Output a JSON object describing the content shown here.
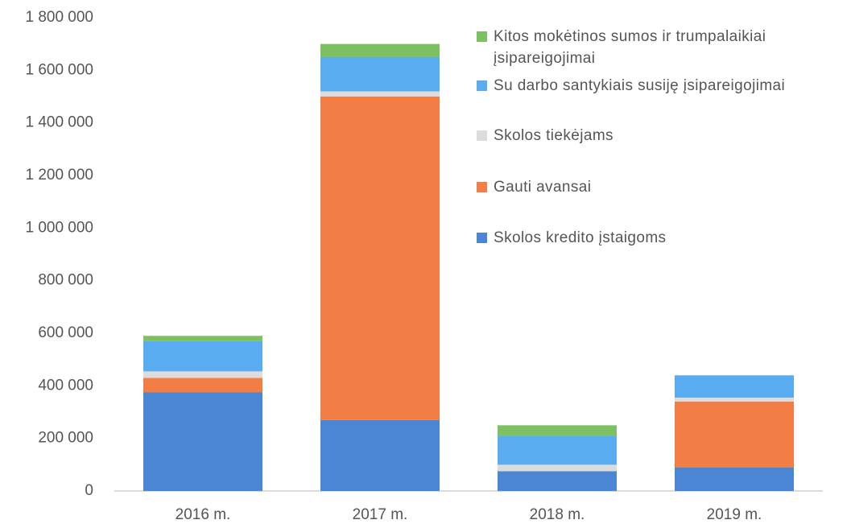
{
  "chart_data": {
    "type": "stacked_bar",
    "categories": [
      "2016 m.",
      "2017 m.",
      "2018 m.",
      "2019 m."
    ],
    "series": [
      {
        "name": "Skolos kredito įstaigoms",
        "color": "#4a86d4",
        "values": [
          375000,
          270000,
          75000,
          90000
        ]
      },
      {
        "name": "Gauti avansai",
        "color": "#f27d45",
        "values": [
          55000,
          1230000,
          0,
          250000
        ]
      },
      {
        "name": "Skolos tiekėjams",
        "color": "#dcdcdc",
        "values": [
          25000,
          20000,
          25000,
          15000
        ]
      },
      {
        "name": "Su darbo santykiais susiję įsipareigojimai",
        "color": "#5aacf0",
        "values": [
          115000,
          130000,
          110000,
          85000
        ]
      },
      {
        "name": "Kitos mokėtinos sumos ir trumpalaikiai įsipareigojimai",
        "color": "#7cc062",
        "values": [
          20000,
          50000,
          40000,
          0
        ]
      }
    ],
    "ylim": [
      0,
      1800000
    ],
    "yticks": [
      0,
      {
        "value": 200000,
        "label": "200 000"
      },
      {
        "value": 400000,
        "label": "400 000"
      },
      {
        "value": 600000,
        "label": "600 000"
      },
      {
        "value": 800000,
        "label": "800 000"
      },
      {
        "value": 1000000,
        "label": "1 000 000"
      },
      {
        "value": 1200000,
        "label": "1 200 000"
      },
      {
        "value": 1400000,
        "label": "1 400 000"
      },
      {
        "value": 1600000,
        "label": "1 600 000"
      },
      {
        "value": 1800000,
        "label": "1 800 000"
      }
    ],
    "grid": false,
    "legend": "top-right"
  }
}
